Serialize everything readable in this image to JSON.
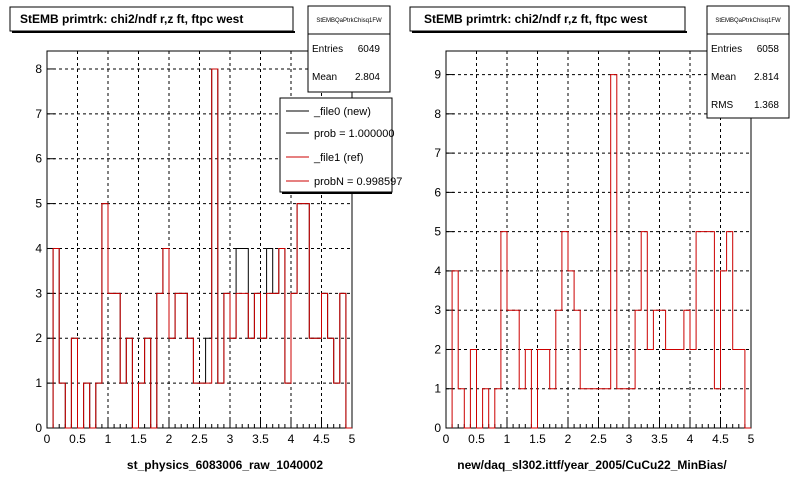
{
  "chart_data": [
    {
      "type": "histogram",
      "title": "StEMB primtrk: chi2/ndf r,z ft, ftpc west",
      "xlabel": "st_physics_6083006_raw_1040002",
      "xlim": [
        0,
        5
      ],
      "ylim": [
        0,
        8.4
      ],
      "yticks": [
        0,
        1,
        2,
        3,
        4,
        5,
        6,
        7,
        8
      ],
      "xticks": [
        0,
        0.5,
        1,
        1.5,
        2,
        2.5,
        3,
        3.5,
        4,
        4.5,
        5
      ],
      "xtick_labels": [
        "0",
        "0.5",
        "1",
        "1.5",
        "2",
        "2.5",
        "3",
        "3.5",
        "4",
        "4.5",
        "5"
      ],
      "grid": true,
      "bin_edges": [
        0.1,
        0.2,
        0.3,
        0.4,
        0.5,
        0.6,
        0.7,
        0.8,
        0.9,
        1.0,
        1.1,
        1.2,
        1.3,
        1.4,
        1.5,
        1.6,
        1.7,
        1.8,
        1.9,
        2.0,
        2.1,
        2.2,
        2.3,
        2.4,
        2.5,
        2.6,
        2.7,
        2.8,
        2.9,
        3.0,
        3.1,
        3.2,
        3.3,
        3.4,
        3.5,
        3.6,
        3.7,
        3.8,
        3.9,
        4.0,
        4.1,
        4.2,
        4.3,
        4.4,
        4.5,
        4.6,
        4.7,
        4.8,
        4.9,
        5.0
      ],
      "series": [
        {
          "name": "_file0 (new)",
          "color": "#000000",
          "values": [
            4,
            1,
            0,
            2,
            0,
            1,
            0,
            1,
            5,
            3,
            3,
            1,
            2,
            0,
            1,
            2,
            0,
            3,
            4,
            2,
            3,
            3,
            2,
            1,
            1,
            2,
            8,
            1,
            3,
            2,
            4,
            4,
            2,
            3,
            2,
            4,
            3,
            4,
            1,
            3,
            5,
            5,
            2,
            2,
            3,
            2,
            1,
            3,
            0
          ]
        },
        {
          "name": "_file1 (ref)",
          "color": "#cc0000",
          "values": [
            4,
            1,
            0,
            2,
            0,
            1,
            0,
            1,
            5,
            3,
            3,
            1,
            2,
            0,
            1,
            2,
            0,
            3,
            4,
            2,
            3,
            3,
            2,
            1,
            1,
            1,
            8,
            1,
            3,
            2,
            3,
            3,
            2,
            3,
            2,
            3,
            3,
            4,
            1,
            3,
            5,
            5,
            2,
            2,
            3,
            2,
            1,
            3,
            0
          ]
        }
      ],
      "stats": {
        "name": "StEMBQaPtrkChisq1FW",
        "entries_label": "Entries",
        "entries": "6049",
        "mean_label": "Mean",
        "mean": "2.804"
      },
      "legend": [
        {
          "label": "_file0 (new)",
          "color": "#000000"
        },
        {
          "label": "prob = 1.000000",
          "color": "#000000"
        },
        {
          "label": "_file1 (ref)",
          "color": "#cc0000"
        },
        {
          "label": "probN = 0.998597",
          "color": "#cc0000"
        }
      ]
    },
    {
      "type": "histogram",
      "title": "StEMB primtrk: chi2/ndf r,z ft, ftpc west",
      "xlabel": "new/daq_sl302.ittf/year_2005/CuCu22_MinBias/",
      "xlim": [
        0,
        5
      ],
      "ylim": [
        0,
        9.6
      ],
      "yticks": [
        0,
        1,
        2,
        3,
        4,
        5,
        6,
        7,
        8,
        9
      ],
      "xticks": [
        0,
        0.5,
        1,
        1.5,
        2,
        2.5,
        3,
        3.5,
        4,
        4.5,
        5
      ],
      "xtick_labels": [
        "0",
        "0.5",
        "1",
        "1.5",
        "2",
        "2.5",
        "3",
        "3.5",
        "4",
        "4.5",
        "5"
      ],
      "grid": true,
      "bin_edges": [
        0.1,
        0.2,
        0.3,
        0.4,
        0.5,
        0.6,
        0.7,
        0.8,
        0.9,
        1.0,
        1.1,
        1.2,
        1.3,
        1.4,
        1.5,
        1.6,
        1.7,
        1.8,
        1.9,
        2.0,
        2.1,
        2.2,
        2.3,
        2.4,
        2.5,
        2.6,
        2.7,
        2.8,
        2.9,
        3.0,
        3.1,
        3.2,
        3.3,
        3.4,
        3.5,
        3.6,
        3.7,
        3.8,
        3.9,
        4.0,
        4.1,
        4.2,
        4.3,
        4.4,
        4.5,
        4.6,
        4.7,
        4.8,
        4.9,
        5.0
      ],
      "series": [
        {
          "name": "",
          "color": "#cc0000",
          "values": [
            4,
            1,
            0,
            2,
            0,
            1,
            0,
            1,
            5,
            3,
            3,
            1,
            2,
            0,
            2,
            2,
            1,
            3,
            5,
            4,
            3,
            1,
            1,
            1,
            1,
            1,
            9,
            1,
            1,
            1,
            3,
            5,
            2,
            3,
            3,
            2,
            2,
            2,
            3,
            2,
            5,
            5,
            5,
            1,
            4,
            5,
            2,
            2,
            0
          ]
        }
      ],
      "stats": {
        "name": "StEMBQaPtrkChisq1FW",
        "entries_label": "Entries",
        "entries": "6058",
        "mean_label": "Mean",
        "mean": "2.814",
        "rms_label": "RMS",
        "rms": "1.368"
      }
    }
  ]
}
